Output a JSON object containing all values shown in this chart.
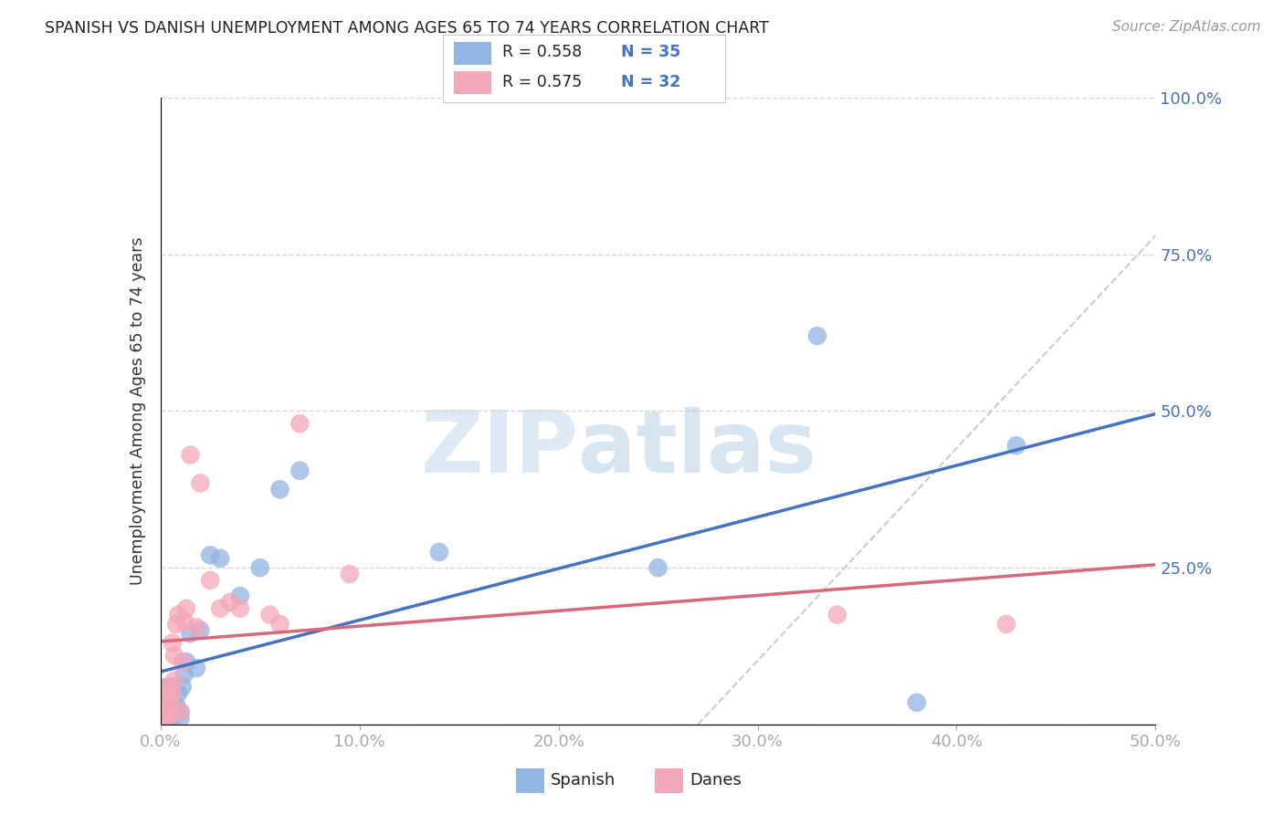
{
  "title": "SPANISH VS DANISH UNEMPLOYMENT AMONG AGES 65 TO 74 YEARS CORRELATION CHART",
  "source": "Source: ZipAtlas.com",
  "ylabel": "Unemployment Among Ages 65 to 74 years",
  "xlim": [
    0,
    0.5
  ],
  "ylim": [
    0,
    1.0
  ],
  "xticks": [
    0.0,
    0.1,
    0.2,
    0.3,
    0.4,
    0.5
  ],
  "yticks": [
    0.0,
    0.25,
    0.5,
    0.75,
    1.0
  ],
  "xtick_labels": [
    "0.0%",
    "10.0%",
    "20.0%",
    "30.0%",
    "40.0%",
    "50.0%"
  ],
  "ytick_labels": [
    "",
    "25.0%",
    "50.0%",
    "75.0%",
    "100.0%"
  ],
  "legend_r1": "R = 0.558",
  "legend_n1": "N = 35",
  "legend_r2": "R = 0.575",
  "legend_n2": "N = 32",
  "legend_label1": "Spanish",
  "legend_label2": "Danes",
  "color_spanish": "#92b4e3",
  "color_danes": "#f4a7b9",
  "color_line_spanish": "#4472C4",
  "color_line_danes": "#d9697a",
  "color_ref_line": "#cccccc",
  "watermark_zip": "ZIP",
  "watermark_atlas": "atlas",
  "spanish_x": [
    0.001,
    0.002,
    0.002,
    0.003,
    0.003,
    0.004,
    0.004,
    0.005,
    0.005,
    0.006,
    0.006,
    0.007,
    0.007,
    0.008,
    0.008,
    0.009,
    0.01,
    0.01,
    0.011,
    0.012,
    0.013,
    0.015,
    0.018,
    0.02,
    0.025,
    0.03,
    0.04,
    0.05,
    0.06,
    0.07,
    0.14,
    0.25,
    0.33,
    0.38,
    0.43
  ],
  "spanish_y": [
    0.02,
    0.025,
    0.055,
    0.015,
    0.06,
    0.02,
    0.03,
    0.01,
    0.05,
    0.025,
    0.06,
    0.015,
    0.055,
    0.018,
    0.03,
    0.05,
    0.01,
    0.02,
    0.06,
    0.08,
    0.1,
    0.145,
    0.09,
    0.15,
    0.27,
    0.265,
    0.205,
    0.25,
    0.375,
    0.405,
    0.275,
    0.25,
    0.62,
    0.035,
    0.445
  ],
  "danes_x": [
    0.001,
    0.002,
    0.002,
    0.003,
    0.003,
    0.004,
    0.004,
    0.005,
    0.005,
    0.006,
    0.006,
    0.007,
    0.007,
    0.008,
    0.009,
    0.01,
    0.011,
    0.012,
    0.013,
    0.015,
    0.018,
    0.02,
    0.025,
    0.03,
    0.035,
    0.04,
    0.055,
    0.06,
    0.07,
    0.095,
    0.34,
    0.425
  ],
  "danes_y": [
    0.01,
    0.015,
    0.02,
    0.015,
    0.05,
    0.025,
    0.06,
    0.015,
    0.035,
    0.05,
    0.13,
    0.07,
    0.11,
    0.16,
    0.175,
    0.02,
    0.1,
    0.165,
    0.185,
    0.43,
    0.155,
    0.385,
    0.23,
    0.185,
    0.195,
    0.185,
    0.175,
    0.16,
    0.48,
    0.24,
    0.175,
    0.16
  ]
}
